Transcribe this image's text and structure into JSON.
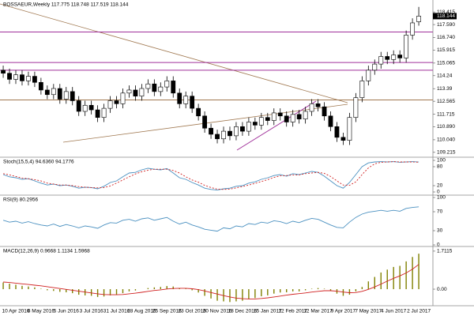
{
  "chart_data": {
    "type": "candlestick",
    "title": "BOSSAEUR,Weekly 117.775 118.748 117.519 118.144",
    "x": [
      null,
      null,
      "10 Apr 2016",
      null,
      null,
      null,
      "8 May 2016",
      null,
      null,
      null,
      "5 Jun 2016",
      null,
      null,
      null,
      "3 Jul 2016",
      null,
      null,
      null,
      "31 Jul 2016",
      null,
      null,
      null,
      "28 Aug 2016",
      null,
      null,
      null,
      "25 Sep 2016",
      null,
      null,
      null,
      "23 Oct 2016",
      null,
      null,
      null,
      "20 Nov 2016",
      null,
      null,
      null,
      "18 Dec 2016",
      null,
      null,
      null,
      "15 Jan 2017",
      null,
      null,
      null,
      "12 Feb 2017",
      null,
      null,
      null,
      "12 Mar 2017",
      null,
      null,
      null,
      "9 Apr 2017",
      null,
      null,
      null,
      "7 May 2017",
      null,
      null,
      null,
      "4 Jun 2017",
      null,
      null,
      null,
      "2 Jul 2017"
    ],
    "open": [
      114.6,
      114.4,
      114.0,
      114.3,
      113.9,
      114.2,
      113.8,
      113.3,
      113.0,
      113.4,
      112.7,
      113.2,
      112.6,
      111.9,
      112.3,
      112.0,
      111.5,
      112.1,
      112.6,
      112.4,
      113.1,
      113.3,
      112.9,
      113.4,
      113.7,
      113.2,
      113.5,
      113.9,
      113.1,
      112.4,
      112.9,
      112.1,
      111.6,
      110.8,
      110.4,
      110.1,
      110.6,
      110.3,
      110.9,
      110.6,
      111.2,
      111.0,
      111.5,
      111.3,
      111.8,
      111.6,
      111.2,
      111.7,
      111.4,
      111.9,
      112.4,
      112.2,
      111.6,
      110.9,
      110.2,
      110.0,
      111.5,
      112.8,
      113.9,
      114.6,
      115.0,
      115.5,
      115.3,
      115.6,
      115.4,
      116.9,
      117.775
    ],
    "high": [
      114.9,
      114.7,
      114.6,
      114.6,
      114.5,
      114.5,
      114.1,
      113.6,
      113.7,
      113.7,
      113.5,
      113.5,
      112.9,
      112.6,
      112.6,
      112.3,
      112.4,
      112.9,
      112.9,
      113.4,
      113.6,
      113.6,
      113.7,
      114.0,
      114.0,
      113.8,
      114.2,
      114.2,
      113.4,
      113.2,
      113.2,
      112.4,
      111.9,
      111.1,
      110.7,
      110.9,
      110.9,
      111.2,
      111.2,
      111.5,
      111.5,
      111.8,
      111.8,
      112.1,
      112.1,
      111.9,
      112.0,
      112.0,
      112.2,
      112.7,
      112.7,
      112.5,
      111.9,
      111.2,
      110.5,
      111.8,
      113.1,
      114.2,
      114.9,
      115.3,
      115.8,
      115.8,
      115.9,
      115.9,
      117.2,
      118.0,
      118.748
    ],
    "low": [
      114.1,
      113.7,
      113.7,
      113.6,
      113.6,
      113.5,
      113.0,
      112.7,
      112.7,
      112.4,
      112.4,
      112.3,
      111.6,
      111.6,
      111.7,
      111.2,
      111.2,
      111.8,
      112.1,
      112.1,
      112.8,
      112.6,
      112.6,
      113.1,
      112.9,
      112.9,
      113.2,
      112.8,
      112.1,
      112.1,
      111.8,
      111.3,
      110.5,
      110.1,
      109.8,
      109.8,
      110.0,
      110.0,
      110.3,
      110.3,
      110.7,
      110.7,
      111.0,
      111.0,
      111.3,
      110.9,
      110.9,
      111.1,
      111.1,
      111.6,
      111.9,
      111.3,
      110.6,
      109.9,
      109.7,
      109.7,
      111.2,
      112.5,
      113.6,
      114.3,
      114.7,
      115.0,
      115.0,
      115.1,
      115.1,
      116.6,
      117.519
    ],
    "close": [
      114.4,
      114.0,
      114.3,
      113.9,
      114.2,
      113.8,
      113.3,
      113.0,
      113.4,
      112.7,
      113.2,
      112.6,
      111.9,
      112.3,
      112.0,
      111.5,
      112.1,
      112.6,
      112.4,
      113.1,
      113.3,
      112.9,
      113.4,
      113.7,
      113.2,
      113.5,
      113.9,
      113.1,
      112.4,
      112.9,
      112.1,
      111.6,
      110.8,
      110.4,
      110.1,
      110.6,
      110.3,
      110.9,
      110.6,
      111.2,
      111.0,
      111.5,
      111.3,
      111.8,
      111.6,
      111.2,
      111.7,
      111.4,
      111.9,
      112.4,
      112.2,
      111.6,
      110.9,
      110.2,
      110.0,
      111.5,
      112.8,
      113.9,
      114.6,
      115.0,
      115.5,
      115.3,
      115.6,
      115.4,
      116.9,
      117.7,
      118.144
    ],
    "ylim": [
      109.0,
      119.2
    ],
    "yticks": [
      118.415,
      {
        "value": 117.59,
        "label": "117.590"
      },
      {
        "value": 116.74,
        "label": "116.740"
      },
      115.915,
      115.065,
      114.24,
      113.39,
      112.565,
      111.715,
      {
        "value": 110.89,
        "label": "110.890"
      },
      {
        "value": 110.04,
        "label": "110.040"
      },
      109.215
    ],
    "up_color": "#ffffff",
    "down_color": "#000000",
    "levels": [
      {
        "value": 117.1,
        "color": "#a0309a"
      },
      {
        "value": 115.1,
        "color": "#a0309a"
      },
      {
        "value": 114.6,
        "color": "#a0309a"
      },
      {
        "value": 112.65,
        "color": "#a07850"
      }
    ],
    "indicators": [
      {
        "type": "line",
        "title": "Stoch(15,5,4) 94.6360 94.1776",
        "ylim": [
          0,
          100
        ],
        "yticks": [
          100,
          80,
          20,
          0
        ],
        "series": [
          {
            "color": "#4a90c0",
            "dash": false,
            "values": [
              55,
              48,
              45,
              40,
              42,
              35,
              28,
              22,
              25,
              20,
              22,
              18,
              12,
              15,
              14,
              10,
              18,
              30,
              35,
              48,
              60,
              62,
              70,
              75,
              72,
              70,
              74,
              60,
              45,
              40,
              30,
              22,
              12,
              8,
              6,
              10,
              12,
              18,
              20,
              28,
              32,
              40,
              45,
              52,
              55,
              50,
              58,
              55,
              60,
              65,
              62,
              50,
              35,
              20,
              12,
              30,
              55,
              80,
              92,
              95,
              96,
              95,
              96,
              94,
              95,
              96,
              94.636
            ]
          },
          {
            "color": "#d02020",
            "dash": true,
            "values": [
              58,
              54,
              49,
              44,
              42,
              39,
              35,
              28,
              25,
              22,
              22,
              20,
              17,
              15,
              14,
              13,
              14,
              19,
              28,
              38,
              48,
              57,
              64,
              69,
              72,
              72,
              72,
              68,
              60,
              48,
              38,
              31,
              21,
              14,
              9,
              8,
              9,
              13,
              17,
              22,
              27,
              33,
              39,
              46,
              51,
              52,
              54,
              54,
              58,
              60,
              62,
              59,
              49,
              35,
              22,
              21,
              32,
              55,
              76,
              89,
              94,
              95,
              96,
              95,
              95,
              95,
              94.1776
            ]
          }
        ]
      },
      {
        "type": "line",
        "title": "RSI(9) 80.2956",
        "ylim": [
          0,
          100
        ],
        "yticks": [
          100,
          70,
          30,
          0
        ],
        "series": [
          {
            "color": "#4a90c0",
            "dash": false,
            "values": [
              52,
              48,
              50,
              46,
              49,
              45,
              42,
              40,
              44,
              39,
              43,
              40,
              36,
              40,
              38,
              35,
              42,
              47,
              46,
              52,
              54,
              50,
              55,
              57,
              52,
              55,
              58,
              50,
              44,
              48,
              42,
              38,
              33,
              31,
              29,
              36,
              34,
              40,
              38,
              45,
              43,
              48,
              46,
              51,
              49,
              45,
              50,
              47,
              52,
              56,
              54,
              48,
              42,
              37,
              36,
              48,
              58,
              65,
              69,
              71,
              73,
              71,
              73,
              71,
              77,
              79,
              80.2956
            ]
          }
        ]
      },
      {
        "type": "macd",
        "title": "MACD(12,26,9) 0.9668 1.1134 1.5968",
        "ylim": [
          -0.71,
          1.85
        ],
        "yticks": [
          1.7115,
          {
            "value": 0,
            "label": "0.00"
          }
        ],
        "series": [
          {
            "kind": "bar",
            "color": "#808000",
            "values": [
              0.3,
              0.25,
              0.2,
              0.15,
              0.12,
              0.08,
              0.02,
              -0.05,
              -0.08,
              -0.12,
              -0.14,
              -0.18,
              -0.25,
              -0.28,
              -0.3,
              -0.35,
              -0.33,
              -0.28,
              -0.25,
              -0.18,
              -0.1,
              -0.06,
              0.0,
              0.05,
              0.08,
              0.1,
              0.14,
              0.12,
              0.05,
              0.02,
              -0.05,
              -0.15,
              -0.3,
              -0.42,
              -0.52,
              -0.55,
              -0.58,
              -0.55,
              -0.52,
              -0.45,
              -0.4,
              -0.32,
              -0.28,
              -0.2,
              -0.15,
              -0.14,
              -0.1,
              -0.1,
              -0.05,
              0.02,
              0.05,
              0.02,
              -0.08,
              -0.2,
              -0.3,
              -0.25,
              -0.1,
              0.1,
              0.35,
              0.55,
              0.75,
              0.88,
              1.0,
              1.05,
              1.25,
              1.45,
              1.5968
            ]
          },
          {
            "kind": "line",
            "color": "#d02020",
            "dash": false,
            "values": [
              0.32,
              0.3,
              0.27,
              0.24,
              0.21,
              0.18,
              0.15,
              0.11,
              0.07,
              0.03,
              -0.01,
              -0.05,
              -0.09,
              -0.13,
              -0.17,
              -0.21,
              -0.24,
              -0.25,
              -0.25,
              -0.24,
              -0.21,
              -0.18,
              -0.14,
              -0.1,
              -0.06,
              -0.03,
              0.01,
              0.03,
              0.04,
              0.04,
              0.02,
              -0.02,
              -0.08,
              -0.15,
              -0.22,
              -0.29,
              -0.35,
              -0.4,
              -0.43,
              -0.44,
              -0.44,
              -0.42,
              -0.39,
              -0.35,
              -0.31,
              -0.27,
              -0.23,
              -0.2,
              -0.17,
              -0.13,
              -0.1,
              -0.07,
              -0.07,
              -0.09,
              -0.13,
              -0.16,
              -0.15,
              -0.1,
              -0.01,
              0.1,
              0.23,
              0.36,
              0.49,
              0.6,
              0.73,
              0.9,
              1.1134
            ]
          }
        ]
      }
    ]
  }
}
